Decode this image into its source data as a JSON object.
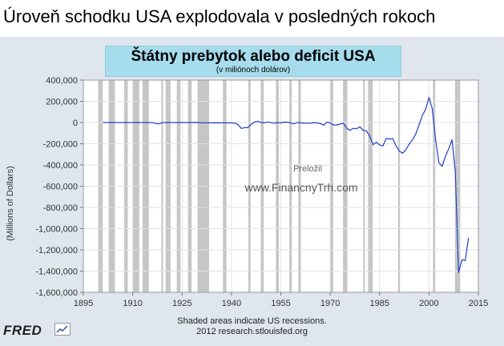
{
  "page": {
    "headline": "Úroveň schodku USA explodovala v posledných rokoch",
    "footer_line1": "Shaded areas indicate US recessions.",
    "footer_line2": "2012 research.stlouisfed.org",
    "logo_text": "FRED",
    "logo_icon": "chart-line-icon",
    "overlay_label": "Preložil",
    "overlay_url": "www.FinancnyTrh.com"
  },
  "colors": {
    "frame_bg": "#dfe6ee",
    "title_bg": "#a6dcec",
    "recession": "#c6c6c6",
    "series": "#1f3fc4"
  },
  "chart_data": {
    "type": "line",
    "title": "Štátny prebytok alebo deficit USA",
    "subtitle": "(v miliónoch dolárov)",
    "xlabel": "",
    "ylabel": "(Millions of Dollars)",
    "xlim": [
      1895,
      2015
    ],
    "ylim": [
      -1600000,
      400000
    ],
    "x_ticks": [
      1895,
      1910,
      1925,
      1940,
      1955,
      1970,
      1985,
      2000,
      2015
    ],
    "y_ticks": [
      400000,
      200000,
      0,
      -200000,
      -400000,
      -600000,
      -800000,
      -1000000,
      -1200000,
      -1400000,
      -1600000
    ],
    "y_tick_labels": [
      "400,000",
      "200,000",
      "0",
      "-200,000",
      "-400,000",
      "-600,000",
      "-800,000",
      "-1,000,000",
      "-1,200,000",
      "-1,400,000",
      "-1,600,000"
    ],
    "grid": true,
    "legend": "none",
    "recessions": [
      [
        1899.5,
        1900.9
      ],
      [
        1902.7,
        1904.6
      ],
      [
        1907.4,
        1908.5
      ],
      [
        1910.1,
        1912.0
      ],
      [
        1913.0,
        1914.9
      ],
      [
        1918.7,
        1919.2
      ],
      [
        1920.0,
        1921.5
      ],
      [
        1923.4,
        1924.5
      ],
      [
        1926.8,
        1927.9
      ],
      [
        1929.7,
        1933.2
      ],
      [
        1937.4,
        1938.5
      ],
      [
        1945.1,
        1945.8
      ],
      [
        1948.9,
        1949.8
      ],
      [
        1953.5,
        1954.4
      ],
      [
        1957.6,
        1958.3
      ],
      [
        1960.3,
        1961.1
      ],
      [
        1969.9,
        1970.9
      ],
      [
        1973.9,
        1975.2
      ],
      [
        1980.0,
        1980.5
      ],
      [
        1981.5,
        1982.9
      ],
      [
        1990.6,
        1991.2
      ],
      [
        2001.2,
        2001.9
      ],
      [
        2007.9,
        2009.5
      ]
    ],
    "series": [
      {
        "x": [
          1901,
          1905,
          1910,
          1915,
          1916,
          1917,
          1918,
          1919,
          1920,
          1925,
          1930,
          1931,
          1932,
          1933,
          1935,
          1937,
          1939,
          1940,
          1941,
          1942,
          1943,
          1944,
          1945,
          1946,
          1947,
          1948,
          1949,
          1950,
          1951,
          1952,
          1953,
          1954,
          1955,
          1956,
          1957,
          1958,
          1959,
          1960,
          1961,
          1962,
          1963,
          1964,
          1965,
          1966,
          1967,
          1968,
          1969,
          1970,
          1971,
          1972,
          1973,
          1974,
          1975,
          1976,
          1977,
          1978,
          1979,
          1980,
          1981,
          1982,
          1983,
          1984,
          1985,
          1986,
          1987,
          1988,
          1989,
          1990,
          1991,
          1992,
          1993,
          1994,
          1995,
          1996,
          1997,
          1998,
          1999,
          2000,
          2001,
          2002,
          2003,
          2004,
          2005,
          2006,
          2007,
          2008,
          2009,
          2010,
          2011,
          2012
        ],
        "y": [
          0,
          0,
          0,
          0,
          -1000,
          -9000,
          -13000,
          -1000,
          0,
          0,
          1000,
          -2000,
          -3000,
          -3000,
          -3000,
          -2000,
          -3000,
          -3000,
          -5000,
          -20000,
          -55000,
          -48000,
          -48000,
          -16000,
          4000,
          12000,
          1000,
          -3000,
          6000,
          -1500,
          -6000,
          -1000,
          -3000,
          4000,
          3000,
          -3000,
          -13000,
          0,
          -3000,
          -7000,
          -5000,
          -6000,
          -1000,
          -4000,
          -9000,
          -25000,
          3000,
          -3000,
          -23000,
          -23000,
          -15000,
          -6000,
          -53000,
          -74000,
          -54000,
          -59000,
          -40000,
          -74000,
          -79000,
          -128000,
          -208000,
          -185000,
          -212000,
          -221000,
          -150000,
          -155000,
          -152000,
          -221000,
          -269000,
          -290000,
          -255000,
          -203000,
          -164000,
          -107000,
          -22000,
          69000,
          126000,
          236000,
          128000,
          -158000,
          -378000,
          -413000,
          -318000,
          -248000,
          -161000,
          -459000,
          -1413000,
          -1294000,
          -1300000,
          -1087000
        ]
      }
    ]
  }
}
